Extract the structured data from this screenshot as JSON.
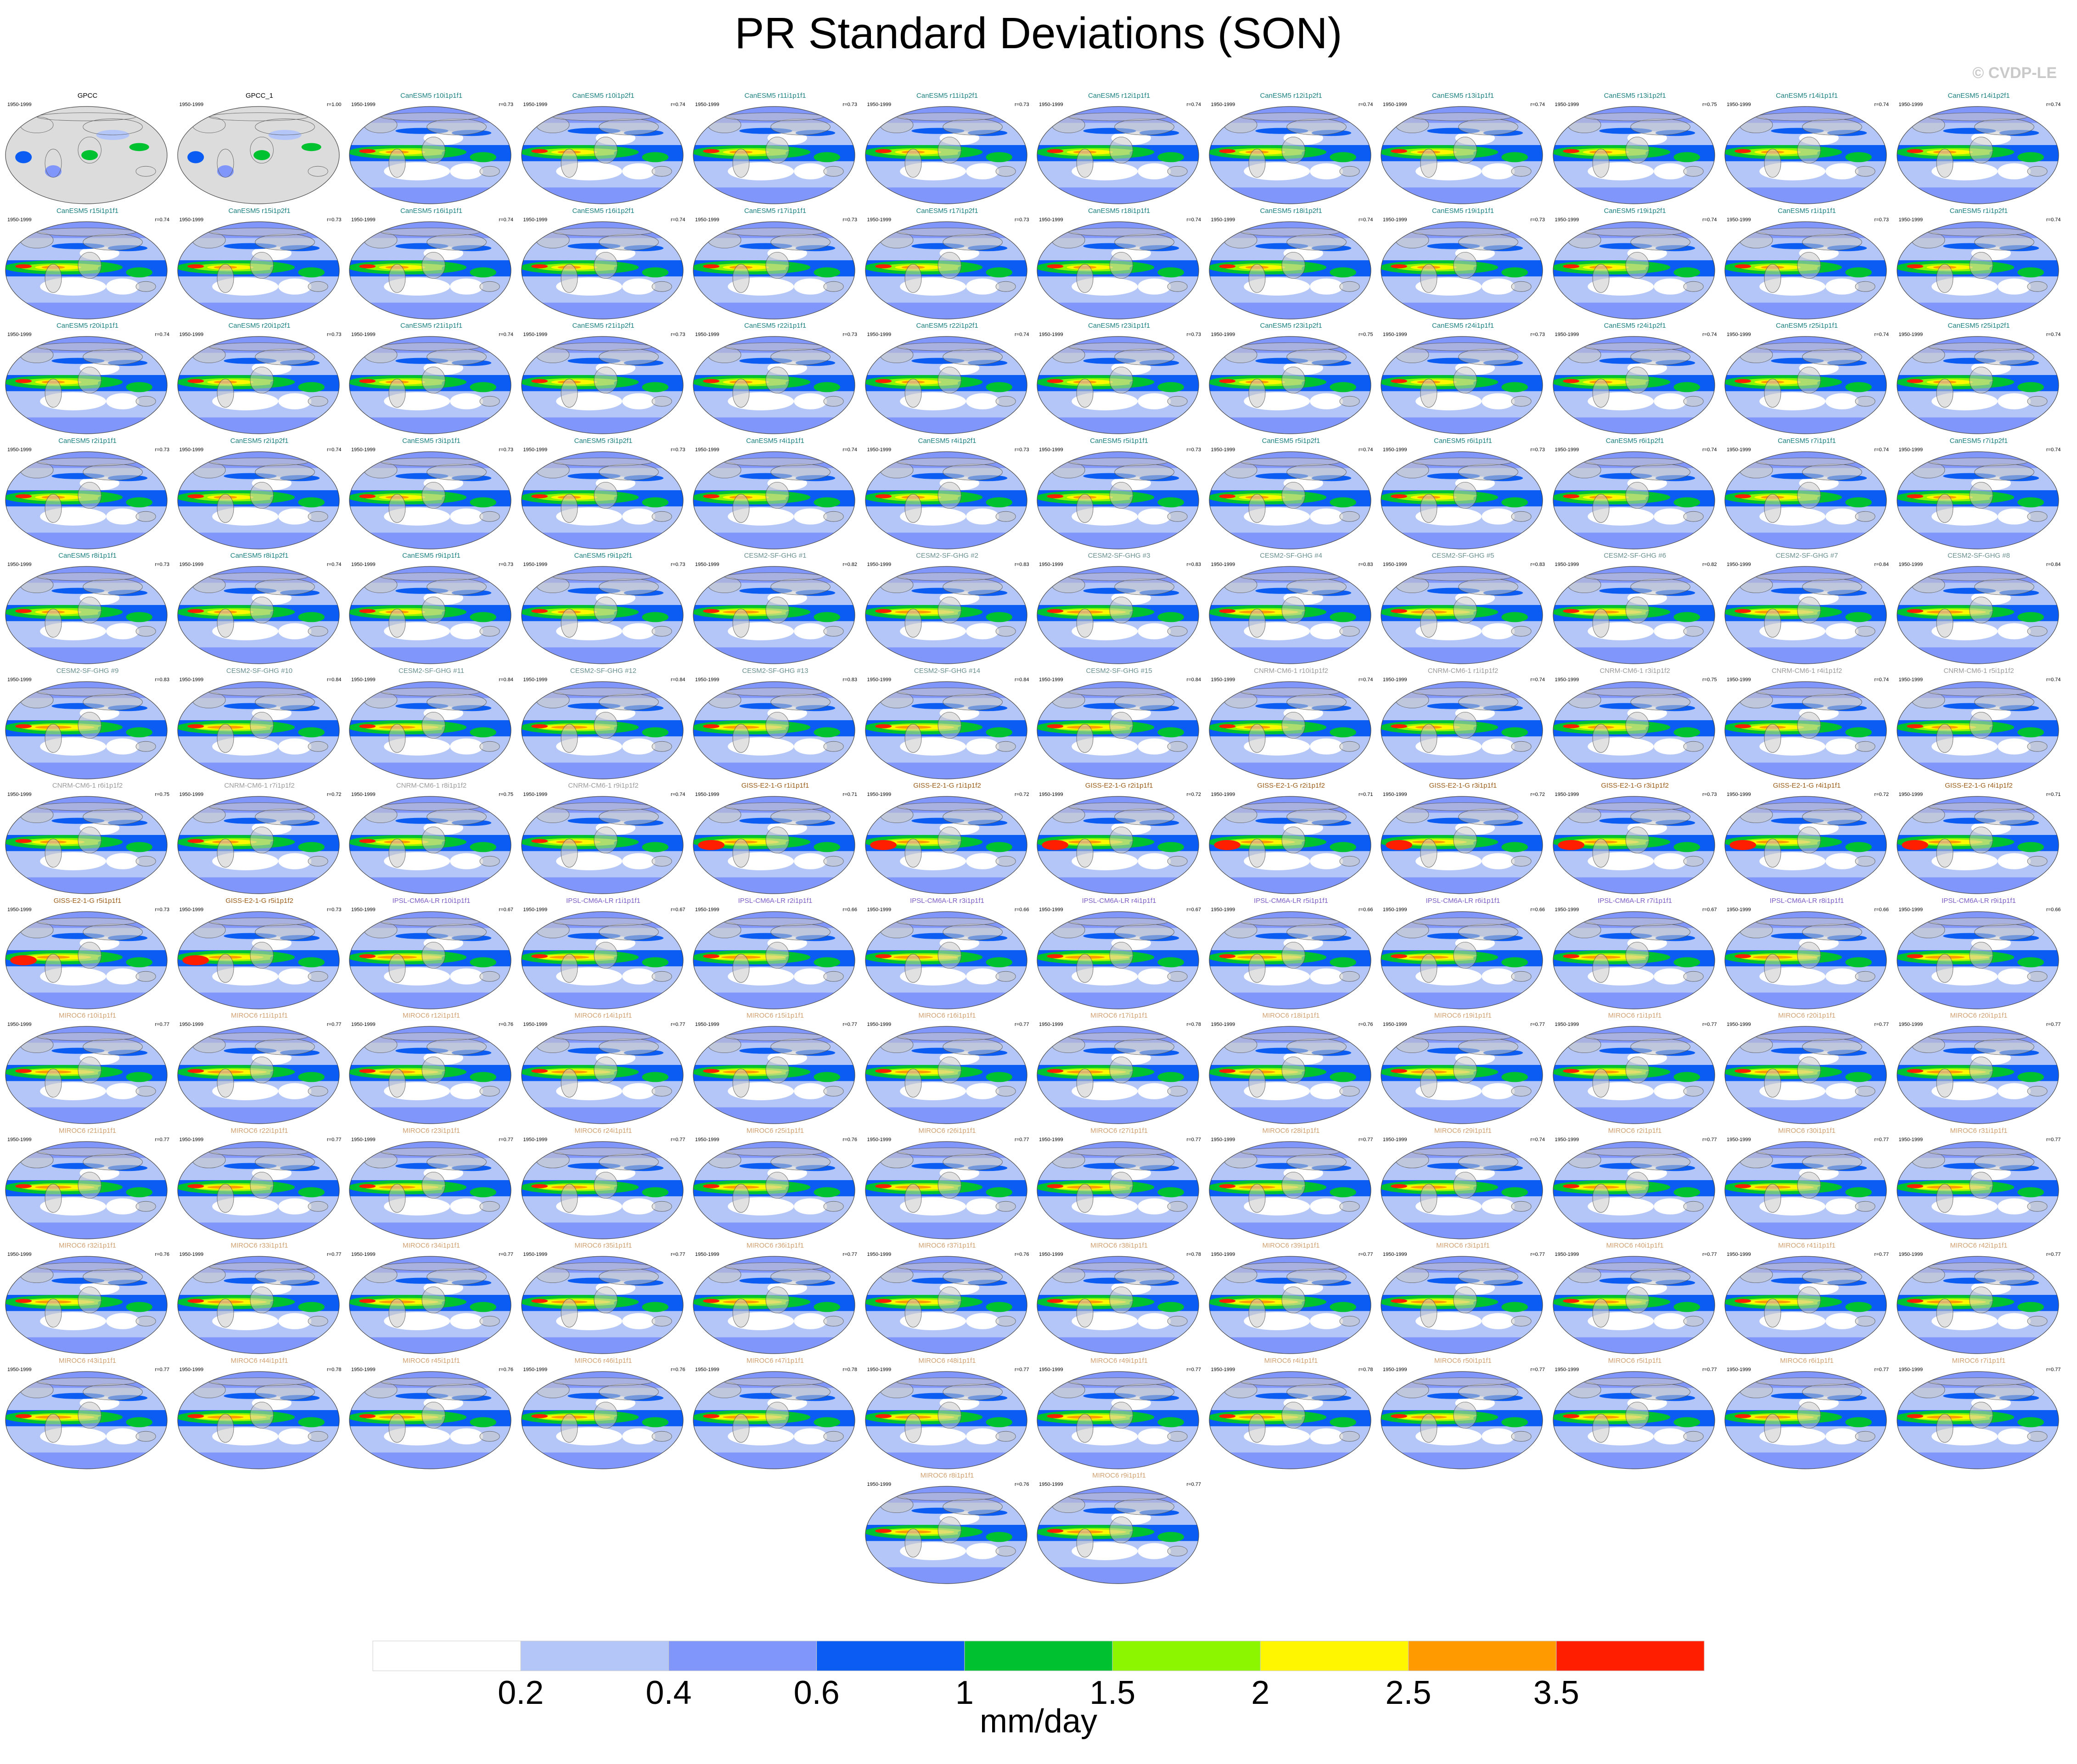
{
  "title": "PR Standard Deviations (SON)",
  "watermark": "© CVDP-LE",
  "panel_years": "1950-1999",
  "colors": {
    "cesm_title": "#1a7f7f",
    "cesm2_title": "#6a8f8f",
    "cnrm_title": "#9a9a9a",
    "giss_title": "#9a5c18",
    "ipsl_title": "#7b5cc6",
    "miroc_title": "#d0a070",
    "obs_title": "#000000",
    "land": "#dcdcdc",
    "coast": "#555555"
  },
  "chart_data": {
    "type": "heatmap",
    "title": "PR Standard Deviations (SON)",
    "map_projection": "Robinson (global)",
    "variable": "precipitation standard deviation, SON season",
    "colorbar": {
      "label": "mm/day",
      "levels": [
        0.2,
        0.4,
        0.6,
        1,
        1.5,
        2,
        2.5,
        3.5
      ],
      "tick_labels": [
        "0.2",
        "0.4",
        "0.6",
        "1",
        "1.5",
        "2",
        "2.5",
        "3.5"
      ],
      "colors": [
        "#ffffff",
        "#b3c6f7",
        "#8096fa",
        "#0a5cf2",
        "#00c230",
        "#8cf500",
        "#fff600",
        "#ff9a00",
        "#ff1e00"
      ]
    },
    "panels": [
      {
        "title": "GPCC",
        "group": "obs",
        "corr": ""
      },
      {
        "title": "GPCC_1",
        "group": "obs",
        "corr": "r=1.00"
      },
      {
        "title": "CanESM5 r10i1p1f1",
        "group": "cesm",
        "corr": "r=0.73"
      },
      {
        "title": "CanESM5 r10i1p2f1",
        "group": "cesm",
        "corr": "r=0.74"
      },
      {
        "title": "CanESM5 r11i1p1f1",
        "group": "cesm",
        "corr": "r=0.73"
      },
      {
        "title": "CanESM5 r11i1p2f1",
        "group": "cesm",
        "corr": "r=0.73"
      },
      {
        "title": "CanESM5 r12i1p1f1",
        "group": "cesm",
        "corr": "r=0.74"
      },
      {
        "title": "CanESM5 r12i1p2f1",
        "group": "cesm",
        "corr": "r=0.74"
      },
      {
        "title": "CanESM5 r13i1p1f1",
        "group": "cesm",
        "corr": "r=0.74"
      },
      {
        "title": "CanESM5 r13i1p2f1",
        "group": "cesm",
        "corr": "r=0.75"
      },
      {
        "title": "CanESM5 r14i1p1f1",
        "group": "cesm",
        "corr": "r=0.74"
      },
      {
        "title": "CanESM5 r14i1p2f1",
        "group": "cesm",
        "corr": "r=0.74"
      },
      {
        "title": "CanESM5 r15i1p1f1",
        "group": "cesm",
        "corr": "r=0.74"
      },
      {
        "title": "CanESM5 r15i1p2f1",
        "group": "cesm",
        "corr": "r=0.73"
      },
      {
        "title": "CanESM5 r16i1p1f1",
        "group": "cesm",
        "corr": "r=0.74"
      },
      {
        "title": "CanESM5 r16i1p2f1",
        "group": "cesm",
        "corr": "r=0.74"
      },
      {
        "title": "CanESM5 r17i1p1f1",
        "group": "cesm",
        "corr": "r=0.73"
      },
      {
        "title": "CanESM5 r17i1p2f1",
        "group": "cesm",
        "corr": "r=0.73"
      },
      {
        "title": "CanESM5 r18i1p1f1",
        "group": "cesm",
        "corr": "r=0.74"
      },
      {
        "title": "CanESM5 r18i1p2f1",
        "group": "cesm",
        "corr": "r=0.74"
      },
      {
        "title": "CanESM5 r19i1p1f1",
        "group": "cesm",
        "corr": "r=0.73"
      },
      {
        "title": "CanESM5 r19i1p2f1",
        "group": "cesm",
        "corr": "r=0.74"
      },
      {
        "title": "CanESM5 r1i1p1f1",
        "group": "cesm",
        "corr": "r=0.73"
      },
      {
        "title": "CanESM5 r1i1p2f1",
        "group": "cesm",
        "corr": "r=0.74"
      },
      {
        "title": "CanESM5 r20i1p1f1",
        "group": "cesm",
        "corr": "r=0.74"
      },
      {
        "title": "CanESM5 r20i1p2f1",
        "group": "cesm",
        "corr": "r=0.73"
      },
      {
        "title": "CanESM5 r21i1p1f1",
        "group": "cesm",
        "corr": "r=0.74"
      },
      {
        "title": "CanESM5 r21i1p2f1",
        "group": "cesm",
        "corr": "r=0.73"
      },
      {
        "title": "CanESM5 r22i1p1f1",
        "group": "cesm",
        "corr": "r=0.73"
      },
      {
        "title": "CanESM5 r22i1p2f1",
        "group": "cesm",
        "corr": "r=0.74"
      },
      {
        "title": "CanESM5 r23i1p1f1",
        "group": "cesm",
        "corr": "r=0.73"
      },
      {
        "title": "CanESM5 r23i1p2f1",
        "group": "cesm",
        "corr": "r=0.75"
      },
      {
        "title": "CanESM5 r24i1p1f1",
        "group": "cesm",
        "corr": "r=0.73"
      },
      {
        "title": "CanESM5 r24i1p2f1",
        "group": "cesm",
        "corr": "r=0.74"
      },
      {
        "title": "CanESM5 r25i1p1f1",
        "group": "cesm",
        "corr": "r=0.74"
      },
      {
        "title": "CanESM5 r25i1p2f1",
        "group": "cesm",
        "corr": "r=0.74"
      },
      {
        "title": "CanESM5 r2i1p1f1",
        "group": "cesm",
        "corr": "r=0.73"
      },
      {
        "title": "CanESM5 r2i1p2f1",
        "group": "cesm",
        "corr": "r=0.74"
      },
      {
        "title": "CanESM5 r3i1p1f1",
        "group": "cesm",
        "corr": "r=0.73"
      },
      {
        "title": "CanESM5 r3i1p2f1",
        "group": "cesm",
        "corr": "r=0.73"
      },
      {
        "title": "CanESM5 r4i1p1f1",
        "group": "cesm",
        "corr": "r=0.74"
      },
      {
        "title": "CanESM5 r4i1p2f1",
        "group": "cesm",
        "corr": "r=0.73"
      },
      {
        "title": "CanESM5 r5i1p1f1",
        "group": "cesm",
        "corr": "r=0.73"
      },
      {
        "title": "CanESM5 r5i1p2f1",
        "group": "cesm",
        "corr": "r=0.74"
      },
      {
        "title": "CanESM5 r6i1p1f1",
        "group": "cesm",
        "corr": "r=0.73"
      },
      {
        "title": "CanESM5 r6i1p2f1",
        "group": "cesm",
        "corr": "r=0.74"
      },
      {
        "title": "CanESM5 r7i1p1f1",
        "group": "cesm",
        "corr": "r=0.74"
      },
      {
        "title": "CanESM5 r7i1p2f1",
        "group": "cesm",
        "corr": "r=0.74"
      },
      {
        "title": "CanESM5 r8i1p1f1",
        "group": "cesm",
        "corr": "r=0.73"
      },
      {
        "title": "CanESM5 r8i1p2f1",
        "group": "cesm",
        "corr": "r=0.74"
      },
      {
        "title": "CanESM5 r9i1p1f1",
        "group": "cesm",
        "corr": "r=0.73"
      },
      {
        "title": "CanESM5 r9i1p2f1",
        "group": "cesm",
        "corr": "r=0.73"
      },
      {
        "title": "CESM2-SF-GHG #1",
        "group": "cesm2",
        "corr": "r=0.82"
      },
      {
        "title": "CESM2-SF-GHG #2",
        "group": "cesm2",
        "corr": "r=0.83"
      },
      {
        "title": "CESM2-SF-GHG #3",
        "group": "cesm2",
        "corr": "r=0.83"
      },
      {
        "title": "CESM2-SF-GHG #4",
        "group": "cesm2",
        "corr": "r=0.83"
      },
      {
        "title": "CESM2-SF-GHG #5",
        "group": "cesm2",
        "corr": "r=0.83"
      },
      {
        "title": "CESM2-SF-GHG #6",
        "group": "cesm2",
        "corr": "r=0.82"
      },
      {
        "title": "CESM2-SF-GHG #7",
        "group": "cesm2",
        "corr": "r=0.84"
      },
      {
        "title": "CESM2-SF-GHG #8",
        "group": "cesm2",
        "corr": "r=0.84"
      },
      {
        "title": "CESM2-SF-GHG #9",
        "group": "cesm2",
        "corr": "r=0.83"
      },
      {
        "title": "CESM2-SF-GHG #10",
        "group": "cesm2",
        "corr": "r=0.84"
      },
      {
        "title": "CESM2-SF-GHG #11",
        "group": "cesm2",
        "corr": "r=0.84"
      },
      {
        "title": "CESM2-SF-GHG #12",
        "group": "cesm2",
        "corr": "r=0.84"
      },
      {
        "title": "CESM2-SF-GHG #13",
        "group": "cesm2",
        "corr": "r=0.83"
      },
      {
        "title": "CESM2-SF-GHG #14",
        "group": "cesm2",
        "corr": "r=0.84"
      },
      {
        "title": "CESM2-SF-GHG #15",
        "group": "cesm2",
        "corr": "r=0.84"
      },
      {
        "title": "CNRM-CM6-1 r10i1p1f2",
        "group": "cnrm",
        "corr": "r=0.74"
      },
      {
        "title": "CNRM-CM6-1 r1i1p1f2",
        "group": "cnrm",
        "corr": "r=0.74"
      },
      {
        "title": "CNRM-CM6-1 r3i1p1f2",
        "group": "cnrm",
        "corr": "r=0.75"
      },
      {
        "title": "CNRM-CM6-1 r4i1p1f2",
        "group": "cnrm",
        "corr": "r=0.74"
      },
      {
        "title": "CNRM-CM6-1 r5i1p1f2",
        "group": "cnrm",
        "corr": "r=0.74"
      },
      {
        "title": "CNRM-CM6-1 r6i1p1f2",
        "group": "cnrm",
        "corr": "r=0.75"
      },
      {
        "title": "CNRM-CM6-1 r7i1p1f2",
        "group": "cnrm",
        "corr": "r=0.72"
      },
      {
        "title": "CNRM-CM6-1 r8i1p1f2",
        "group": "cnrm",
        "corr": "r=0.75"
      },
      {
        "title": "CNRM-CM6-1 r9i1p1f2",
        "group": "cnrm",
        "corr": "r=0.74"
      },
      {
        "title": "GISS-E2-1-G r1i1p1f1",
        "group": "giss",
        "corr": "r=0.71"
      },
      {
        "title": "GISS-E2-1-G r1i1p1f2",
        "group": "giss",
        "corr": "r=0.72"
      },
      {
        "title": "GISS-E2-1-G r2i1p1f1",
        "group": "giss",
        "corr": "r=0.72"
      },
      {
        "title": "GISS-E2-1-G r2i1p1f2",
        "group": "giss",
        "corr": "r=0.71"
      },
      {
        "title": "GISS-E2-1-G r3i1p1f1",
        "group": "giss",
        "corr": "r=0.72"
      },
      {
        "title": "GISS-E2-1-G r3i1p1f2",
        "group": "giss",
        "corr": "r=0.73"
      },
      {
        "title": "GISS-E2-1-G r4i1p1f1",
        "group": "giss",
        "corr": "r=0.72"
      },
      {
        "title": "GISS-E2-1-G r4i1p1f2",
        "group": "giss",
        "corr": "r=0.71"
      },
      {
        "title": "GISS-E2-1-G r5i1p1f1",
        "group": "giss",
        "corr": "r=0.73"
      },
      {
        "title": "GISS-E2-1-G r5i1p1f2",
        "group": "giss",
        "corr": "r=0.73"
      },
      {
        "title": "IPSL-CM6A-LR r10i1p1f1",
        "group": "ipsl",
        "corr": "r=0.67"
      },
      {
        "title": "IPSL-CM6A-LR r1i1p1f1",
        "group": "ipsl",
        "corr": "r=0.67"
      },
      {
        "title": "IPSL-CM6A-LR r2i1p1f1",
        "group": "ipsl",
        "corr": "r=0.66"
      },
      {
        "title": "IPSL-CM6A-LR r3i1p1f1",
        "group": "ipsl",
        "corr": "r=0.66"
      },
      {
        "title": "IPSL-CM6A-LR r4i1p1f1",
        "group": "ipsl",
        "corr": "r=0.67"
      },
      {
        "title": "IPSL-CM6A-LR r5i1p1f1",
        "group": "ipsl",
        "corr": "r=0.66"
      },
      {
        "title": "IPSL-CM6A-LR r6i1p1f1",
        "group": "ipsl",
        "corr": "r=0.66"
      },
      {
        "title": "IPSL-CM6A-LR r7i1p1f1",
        "group": "ipsl",
        "corr": "r=0.67"
      },
      {
        "title": "IPSL-CM6A-LR r8i1p1f1",
        "group": "ipsl",
        "corr": "r=0.66"
      },
      {
        "title": "IPSL-CM6A-LR r9i1p1f1",
        "group": "ipsl",
        "corr": "r=0.66"
      },
      {
        "title": "MIROC6 r10i1p1f1",
        "group": "miroc",
        "corr": "r=0.77"
      },
      {
        "title": "MIROC6 r11i1p1f1",
        "group": "miroc",
        "corr": "r=0.77"
      },
      {
        "title": "MIROC6 r12i1p1f1",
        "group": "miroc",
        "corr": "r=0.76"
      },
      {
        "title": "MIROC6 r14i1p1f1",
        "group": "miroc",
        "corr": "r=0.77"
      },
      {
        "title": "MIROC6 r15i1p1f1",
        "group": "miroc",
        "corr": "r=0.77"
      },
      {
        "title": "MIROC6 r16i1p1f1",
        "group": "miroc",
        "corr": "r=0.77"
      },
      {
        "title": "MIROC6 r17i1p1f1",
        "group": "miroc",
        "corr": "r=0.78"
      },
      {
        "title": "MIROC6 r18i1p1f1",
        "group": "miroc",
        "corr": "r=0.76"
      },
      {
        "title": "MIROC6 r19i1p1f1",
        "group": "miroc",
        "corr": "r=0.77"
      },
      {
        "title": "MIROC6 r1i1p1f1",
        "group": "miroc",
        "corr": "r=0.77"
      },
      {
        "title": "MIROC6 r20i1p1f1",
        "group": "miroc",
        "corr": "r=0.77"
      },
      {
        "title": "MIROC6 r20i1p1f1",
        "group": "miroc",
        "corr": "r=0.77"
      },
      {
        "title": "MIROC6 r21i1p1f1",
        "group": "miroc",
        "corr": "r=0.77"
      },
      {
        "title": "MIROC6 r22i1p1f1",
        "group": "miroc",
        "corr": "r=0.77"
      },
      {
        "title": "MIROC6 r23i1p1f1",
        "group": "miroc",
        "corr": "r=0.77"
      },
      {
        "title": "MIROC6 r24i1p1f1",
        "group": "miroc",
        "corr": "r=0.77"
      },
      {
        "title": "MIROC6 r25i1p1f1",
        "group": "miroc",
        "corr": "r=0.76"
      },
      {
        "title": "MIROC6 r26i1p1f1",
        "group": "miroc",
        "corr": "r=0.77"
      },
      {
        "title": "MIROC6 r27i1p1f1",
        "group": "miroc",
        "corr": "r=0.77"
      },
      {
        "title": "MIROC6 r28i1p1f1",
        "group": "miroc",
        "corr": "r=0.77"
      },
      {
        "title": "MIROC6 r29i1p1f1",
        "group": "miroc",
        "corr": "r=0.74"
      },
      {
        "title": "MIROC6 r2i1p1f1",
        "group": "miroc",
        "corr": "r=0.77"
      },
      {
        "title": "MIROC6 r30i1p1f1",
        "group": "miroc",
        "corr": "r=0.77"
      },
      {
        "title": "MIROC6 r31i1p1f1",
        "group": "miroc",
        "corr": "r=0.77"
      },
      {
        "title": "MIROC6 r32i1p1f1",
        "group": "miroc",
        "corr": "r=0.76"
      },
      {
        "title": "MIROC6 r33i1p1f1",
        "group": "miroc",
        "corr": "r=0.77"
      },
      {
        "title": "MIROC6 r34i1p1f1",
        "group": "miroc",
        "corr": "r=0.77"
      },
      {
        "title": "MIROC6 r35i1p1f1",
        "group": "miroc",
        "corr": "r=0.77"
      },
      {
        "title": "MIROC6 r36i1p1f1",
        "group": "miroc",
        "corr": "r=0.77"
      },
      {
        "title": "MIROC6 r37i1p1f1",
        "group": "miroc",
        "corr": "r=0.76"
      },
      {
        "title": "MIROC6 r38i1p1f1",
        "group": "miroc",
        "corr": "r=0.78"
      },
      {
        "title": "MIROC6 r39i1p1f1",
        "group": "miroc",
        "corr": "r=0.77"
      },
      {
        "title": "MIROC6 r3i1p1f1",
        "group": "miroc",
        "corr": "r=0.77"
      },
      {
        "title": "MIROC6 r40i1p1f1",
        "group": "miroc",
        "corr": "r=0.77"
      },
      {
        "title": "MIROC6 r41i1p1f1",
        "group": "miroc",
        "corr": "r=0.77"
      },
      {
        "title": "MIROC6 r42i1p1f1",
        "group": "miroc",
        "corr": "r=0.77"
      },
      {
        "title": "MIROC6 r43i1p1f1",
        "group": "miroc",
        "corr": "r=0.77"
      },
      {
        "title": "MIROC6 r44i1p1f1",
        "group": "miroc",
        "corr": "r=0.78"
      },
      {
        "title": "MIROC6 r45i1p1f1",
        "group": "miroc",
        "corr": "r=0.76"
      },
      {
        "title": "MIROC6 r46i1p1f1",
        "group": "miroc",
        "corr": "r=0.76"
      },
      {
        "title": "MIROC6 r47i1p1f1",
        "group": "miroc",
        "corr": "r=0.78"
      },
      {
        "title": "MIROC6 r48i1p1f1",
        "group": "miroc",
        "corr": "r=0.77"
      },
      {
        "title": "MIROC6 r49i1p1f1",
        "group": "miroc",
        "corr": "r=0.77"
      },
      {
        "title": "MIROC6 r4i1p1f1",
        "group": "miroc",
        "corr": "r=0.78"
      },
      {
        "title": "MIROC6 r50i1p1f1",
        "group": "miroc",
        "corr": "r=0.77"
      },
      {
        "title": "MIROC6 r5i1p1f1",
        "group": "miroc",
        "corr": "r=0.77"
      },
      {
        "title": "MIROC6 r6i1p1f1",
        "group": "miroc",
        "corr": "r=0.77"
      },
      {
        "title": "MIROC6 r7i1p1f1",
        "group": "miroc",
        "corr": "r=0.77"
      },
      {
        "title": "MIROC6 r8i1p1f1",
        "group": "miroc",
        "corr": "r=0.76"
      },
      {
        "title": "MIROC6 r9i1p1f1",
        "group": "miroc",
        "corr": "r=0.77"
      }
    ]
  }
}
